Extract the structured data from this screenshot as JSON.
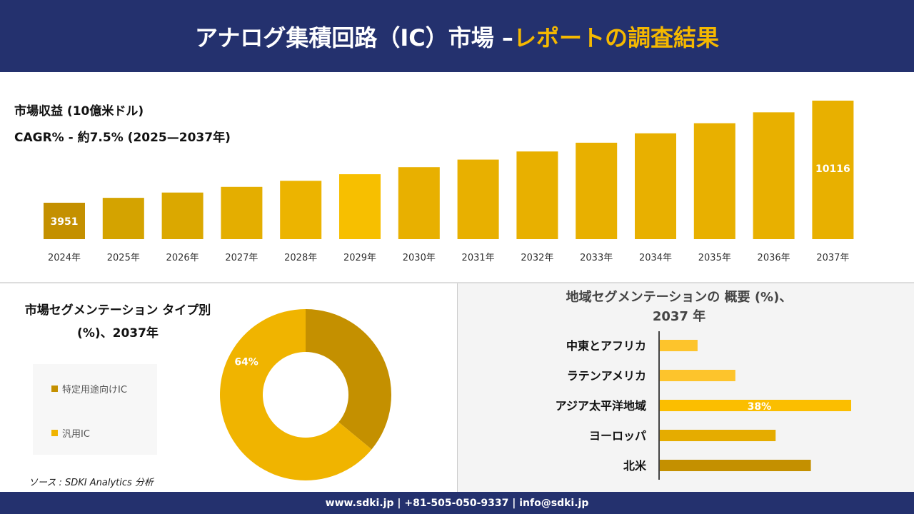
{
  "header": {
    "title_main": "アナログ集積回路（IC）市場 –",
    "title_highlight": "レポートの調査結果"
  },
  "chart_data": [
    {
      "type": "bar",
      "title": "市場収益 (10億米ドル)",
      "subtitle": "CAGR% - 約7.5% (2025—2037年)",
      "categories": [
        "2024年",
        "2025年",
        "2026年",
        "2027年",
        "2028年",
        "2029年",
        "2030年",
        "2031年",
        "2032年",
        "2033年",
        "2034年",
        "2035年",
        "2036年",
        "2037年"
      ],
      "values": [
        3951,
        4247,
        4566,
        4908,
        5276,
        5672,
        6097,
        6555,
        7046,
        7575,
        8143,
        8753,
        9410,
        10116
      ],
      "data_labels": {
        "0": "3951",
        "13": "10116"
      },
      "colors": [
        "#c49000",
        "#d4a300",
        "#dba800",
        "#e4ae00",
        "#ecb400",
        "#f7bf00",
        "#e8b000",
        "#e8b000",
        "#e8b000",
        "#e8b000",
        "#e8b000",
        "#e8b000",
        "#e8b000",
        "#e8b000"
      ]
    },
    {
      "type": "pie",
      "donut": true,
      "title": "市場セグメンテーション タイプ別 (%)、2037年",
      "labels": [
        "特定用途向けIC",
        "汎用IC"
      ],
      "values": [
        36,
        64
      ],
      "colors": [
        "#c49000",
        "#f0b400"
      ],
      "data_labels": {
        "1": "64%"
      }
    },
    {
      "type": "bar",
      "orientation": "horizontal",
      "title": "地域セグメンテーションの 概要 (%)、2037 年",
      "categories": [
        "中東とアフリカ",
        "ラテンアメリカ",
        "アジア太平洋地域",
        "ヨーロッパ",
        "北米"
      ],
      "values": [
        7.5,
        15,
        38,
        23,
        30
      ],
      "data_labels": {
        "2": "38%"
      },
      "colors": [
        "#fdc42c",
        "#fdc42c",
        "#fbbe00",
        "#e5ac00",
        "#c49000"
      ]
    }
  ],
  "source": "ソース : SDKI Analytics 分析",
  "footer": "www.sdki.jp | +81-505-050-9337 | info@sdki.jp"
}
